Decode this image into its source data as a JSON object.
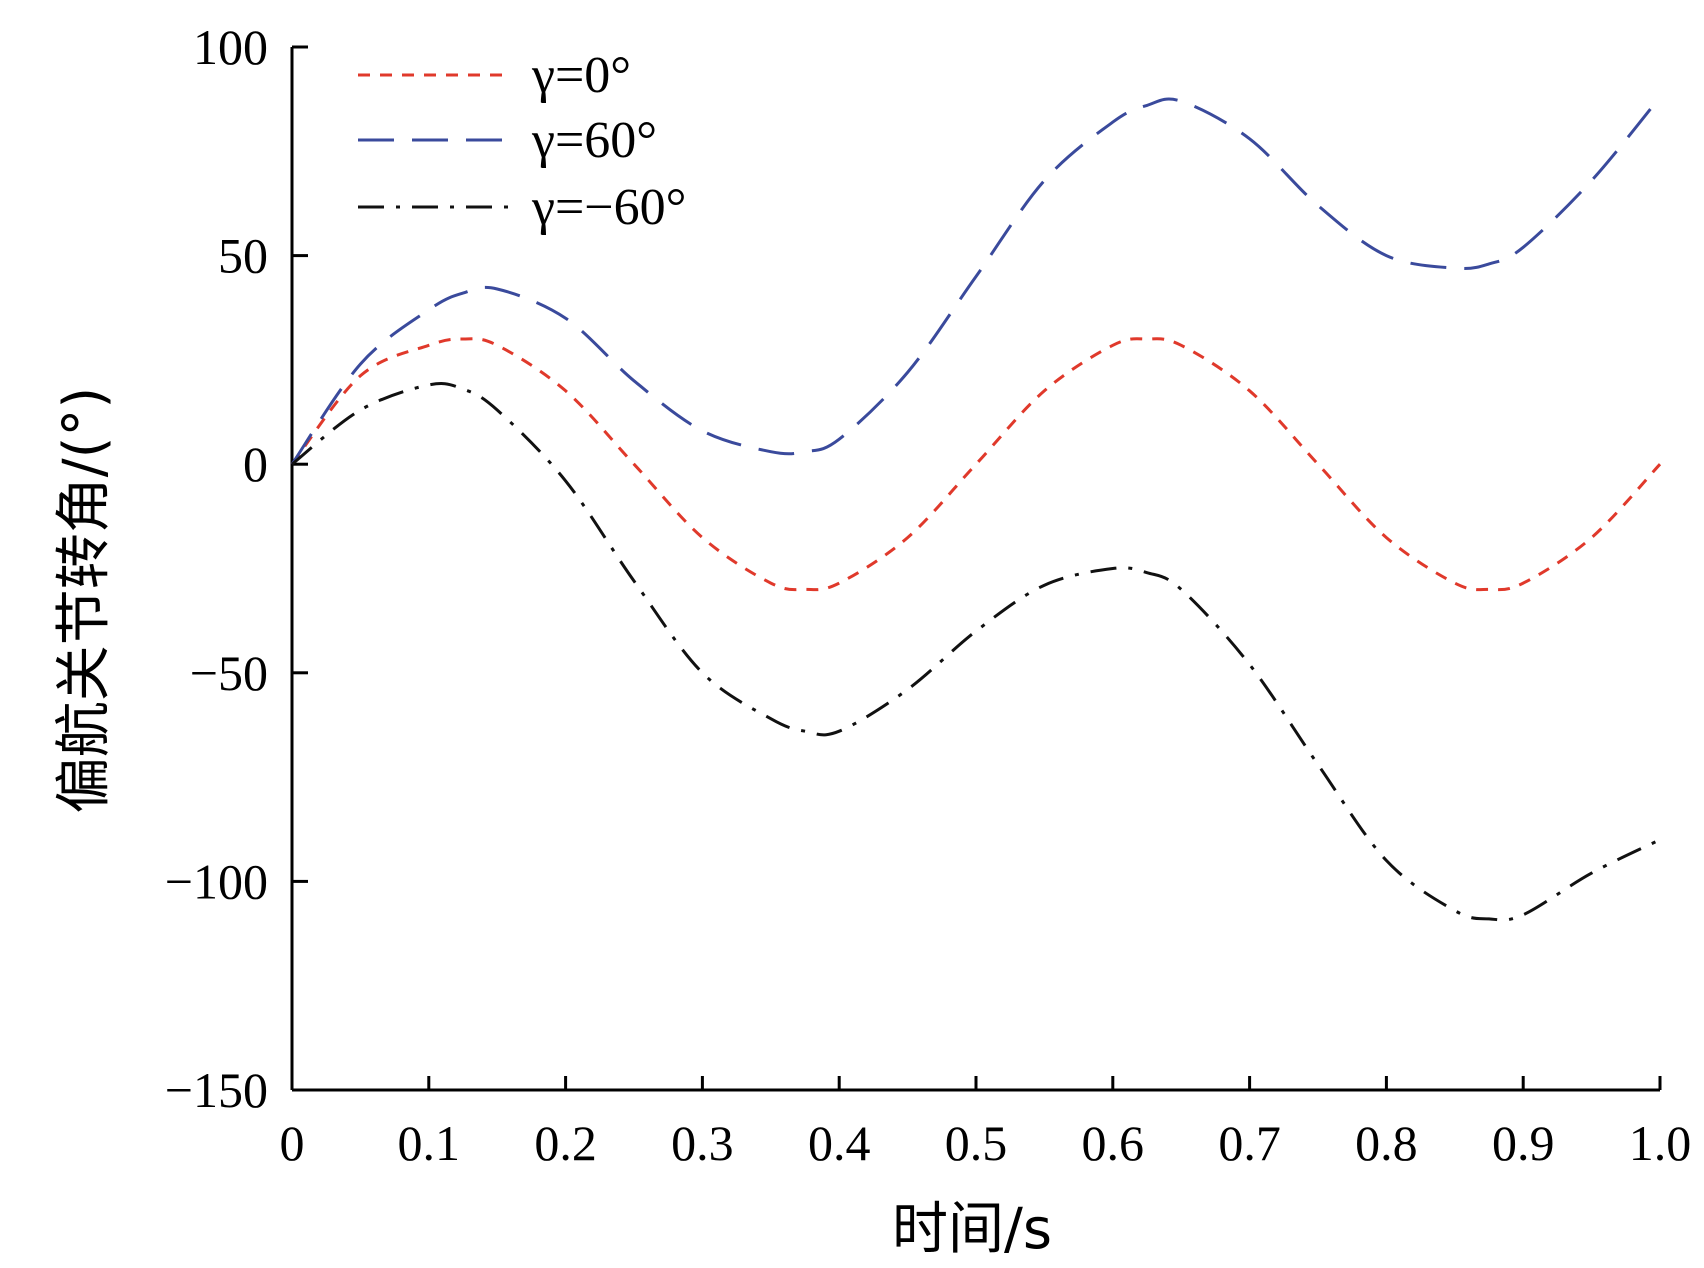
{
  "chart_data": {
    "type": "line",
    "title": "",
    "xlabel": "时间/s",
    "ylabel": "偏航关节转角/(°)",
    "xlim": [
      0,
      1.0
    ],
    "ylim": [
      -150,
      100
    ],
    "xticks": [
      0,
      0.1,
      0.2,
      0.3,
      0.4,
      0.5,
      0.6,
      0.7,
      0.8,
      0.9,
      1.0
    ],
    "xtick_labels": [
      "0",
      "0.1",
      "0.2",
      "0.3",
      "0.4",
      "0.5",
      "0.6",
      "0.7",
      "0.8",
      "0.9",
      "1.0"
    ],
    "yticks": [
      100,
      50,
      0,
      -50,
      -100,
      -150
    ],
    "ytick_labels": [
      "100",
      "50",
      "0",
      "−50",
      "−100",
      "−150"
    ],
    "grid": false,
    "legend_position": "top-left",
    "x": [
      0,
      0.05,
      0.1,
      0.125,
      0.15,
      0.2,
      0.25,
      0.3,
      0.35,
      0.375,
      0.4,
      0.45,
      0.5,
      0.55,
      0.6,
      0.625,
      0.65,
      0.7,
      0.75,
      0.8,
      0.85,
      0.875,
      0.9,
      0.95,
      1.0
    ],
    "series": [
      {
        "name": "γ=0°",
        "color": "#e0392b",
        "dash": "dashed-short",
        "values": [
          0,
          21.2,
          28.5,
          30,
          28.5,
          17.6,
          0,
          -17.6,
          -28.5,
          -30,
          -28.5,
          -17.6,
          0,
          17.6,
          28.5,
          30,
          28.5,
          17.6,
          0,
          -17.6,
          -28.5,
          -30,
          -28.5,
          -17.6,
          0
        ]
      },
      {
        "name": "γ=60°",
        "color": "#3a4a9c",
        "dash": "dashed-long",
        "values": [
          0,
          24,
          37,
          41,
          42,
          35,
          20,
          8,
          3,
          3,
          6,
          22,
          45,
          68,
          82,
          86,
          87,
          78,
          62,
          50,
          47,
          48,
          52,
          68,
          88
        ]
      },
      {
        "name": "γ=−60°",
        "color": "#111111",
        "dash": "dash-dot",
        "values": [
          0,
          13,
          19,
          18,
          13,
          -4,
          -28,
          -50,
          -61,
          -64,
          -64,
          -54,
          -40,
          -29,
          -25,
          -26,
          -30,
          -48,
          -72,
          -95,
          -107,
          -109,
          -108,
          -98,
          -90
        ]
      }
    ]
  }
}
